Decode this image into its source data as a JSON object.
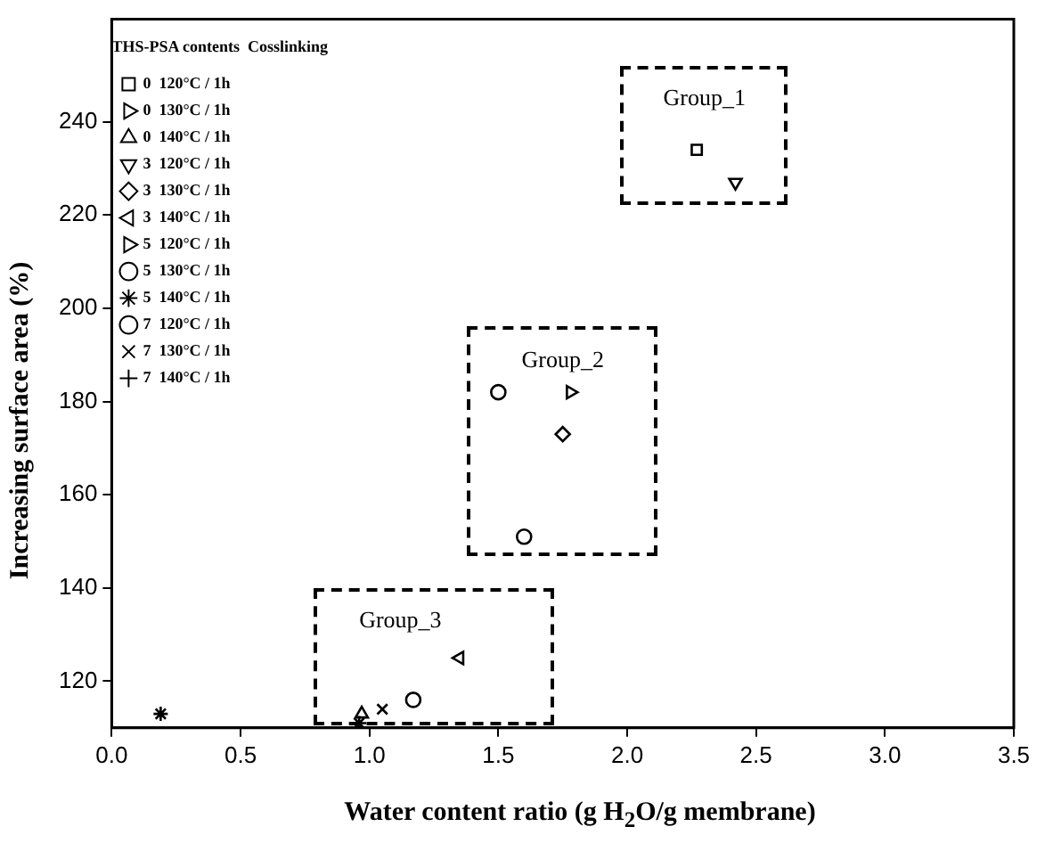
{
  "chart_data": {
    "type": "scatter",
    "xlabel": "Water content ratio (g H$_{2}$O/g membrane)",
    "ylabel": "Increasing surface area (%)",
    "legend_title": "THS-PSA contents  Cosslinking",
    "xlim": [
      0,
      3.5
    ],
    "xticks": [
      {
        "value": 0,
        "label": "0.0"
      },
      0.5,
      {
        "value": 1,
        "label": "1.0"
      },
      1.5,
      {
        "value": 2,
        "label": "2.0"
      },
      2.5,
      {
        "value": 3,
        "label": "3.0"
      },
      3.5
    ],
    "ylim": [
      110,
      262
    ],
    "yticks": [
      120,
      140,
      160,
      180,
      200,
      220,
      240
    ],
    "grid": false,
    "legend": "top left",
    "series": [
      {
        "name": "0  120°C / 1h",
        "color": "#000000",
        "marker": "square",
        "x": [
          2.27
        ],
        "values": [
          234
        ]
      },
      {
        "name": "0  130°C / 1h",
        "color": "#000000",
        "marker": "triangle-right"
      },
      {
        "name": "0  140°C / 1h",
        "color": "#000000",
        "marker": "triangle",
        "x": [
          0.97
        ],
        "values": [
          113
        ]
      },
      {
        "name": "3  120°C / 1h",
        "color": "#000000",
        "marker": "triangle-down",
        "x": [
          2.42
        ],
        "values": [
          227
        ]
      },
      {
        "name": "3  130°C / 1h",
        "color": "#000000",
        "marker": "diamond",
        "x": [
          1.75
        ],
        "values": [
          173
        ]
      },
      {
        "name": "3  140°C / 1h",
        "color": "#000000",
        "marker": "triangle-left",
        "x": [
          1.35
        ],
        "values": [
          125
        ]
      },
      {
        "name": "5  120°C / 1h",
        "color": "#000000",
        "marker": "triangle-right",
        "x": [
          1.78
        ],
        "values": [
          182
        ]
      },
      {
        "name": "5  130°C / 1h",
        "color": "#000000",
        "marker": "circle",
        "x": [
          1.5
        ],
        "values": [
          182
        ]
      },
      {
        "name": "5  140°C / 1h",
        "color": "#000000",
        "x": [
          0.96
        ],
        "values": [
          111
        ]
      },
      {
        "name": "7  120°C / 1h",
        "color": "#000000",
        "marker": "circle",
        "x": [
          1.6,
          1.17
        ],
        "values": [
          151,
          116
        ]
      },
      {
        "name": "7  130°C / 1h",
        "color": "#000000",
        "marker": "cross",
        "x": [
          1.05
        ],
        "values": [
          114
        ]
      },
      {
        "name": "7  140°C / 1h",
        "color": "#000000",
        "marker": "plus"
      },
      {
        "color": "#000000",
        "x": [
          0.19
        ],
        "values": [
          113
        ]
      }
    ],
    "annotations": [
      "Group_1",
      "Group_2",
      "Group_3"
    ]
  }
}
